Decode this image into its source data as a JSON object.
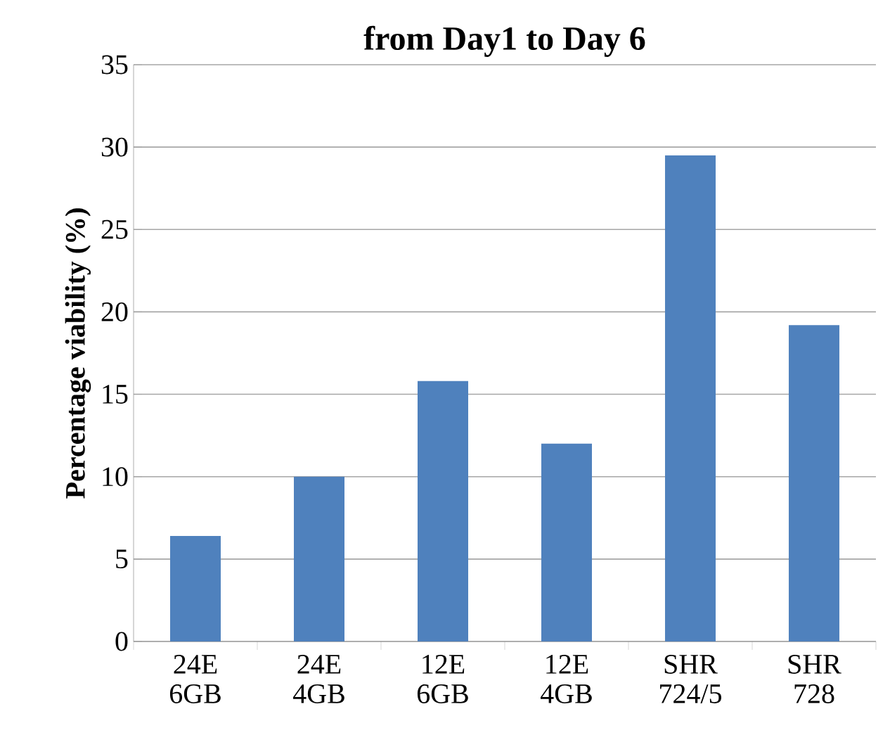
{
  "chart_data": {
    "type": "bar",
    "title": "from Day1 to Day 6",
    "ylabel": "Percentage viability (%)",
    "categories": [
      "24E 6GB",
      "24E 4GB",
      "12E 6GB",
      "12E 4GB",
      "SHR 724/5",
      "SHR 728"
    ],
    "values": [
      6.4,
      10,
      15.8,
      12,
      29.5,
      19.2
    ],
    "color": "#4f81bd",
    "ylim": [
      0,
      35
    ],
    "yticks": [
      0,
      5,
      10,
      15,
      20,
      25,
      30,
      35
    ],
    "grid": "y"
  }
}
